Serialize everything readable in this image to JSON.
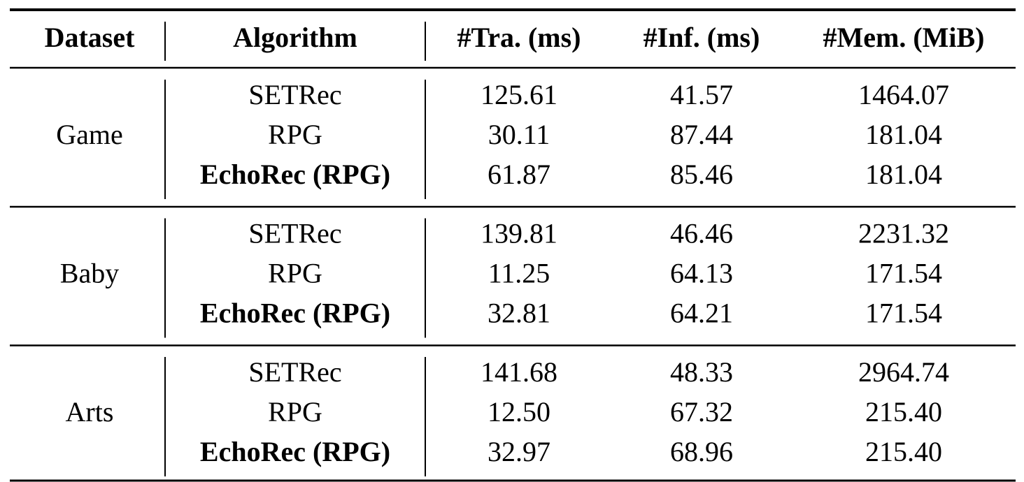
{
  "table": {
    "header": [
      "Dataset",
      "Algorithm",
      "#Tra. (ms)",
      "#Inf. (ms)",
      "#Mem. (MiB)"
    ],
    "groups": [
      {
        "dataset": "Game",
        "rows": [
          [
            "SETRec",
            "125.61",
            "41.57",
            "1464.07"
          ],
          [
            "RPG",
            "30.11",
            "87.44",
            "181.04"
          ],
          [
            "EchoRec (RPG)",
            "61.87",
            "85.46",
            "181.04"
          ]
        ]
      },
      {
        "dataset": "Baby",
        "rows": [
          [
            "SETRec",
            "139.81",
            "46.46",
            "2231.32"
          ],
          [
            "RPG",
            "11.25",
            "64.13",
            "171.54"
          ],
          [
            "EchoRec (RPG)",
            "32.81",
            "64.21",
            "171.54"
          ]
        ]
      },
      {
        "dataset": "Arts",
        "rows": [
          [
            "SETRec",
            "141.68",
            "48.33",
            "2964.74"
          ],
          [
            "RPG",
            "12.50",
            "67.32",
            "215.40"
          ],
          [
            "EchoRec (RPG)",
            "32.97",
            "68.96",
            "215.40"
          ]
        ]
      }
    ]
  }
}
